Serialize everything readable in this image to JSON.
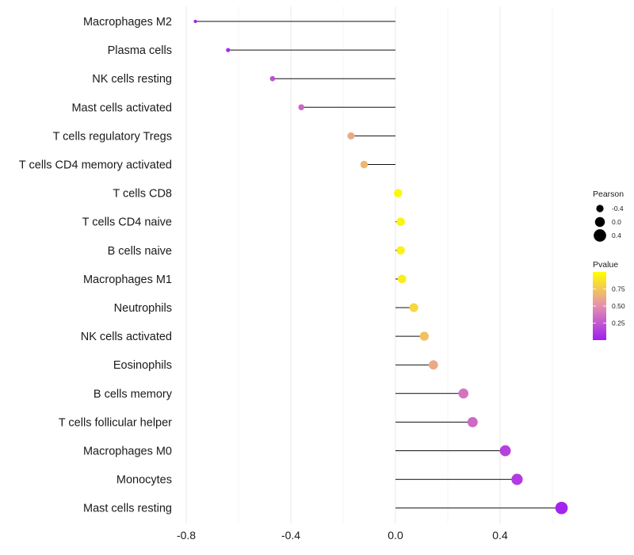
{
  "chart_data": {
    "type": "lollipop",
    "title": "",
    "xlabel": "",
    "ylabel": "",
    "xlim": [
      -0.8,
      0.63
    ],
    "x_ticks": [
      -0.8,
      -0.4,
      0.0,
      0.4
    ],
    "x_tick_labels": [
      "-0.8",
      "-0.4",
      "0.0",
      "0.4"
    ],
    "grid": true,
    "categories": [
      "Macrophages M2",
      "Plasma cells",
      "NK cells resting",
      "Mast cells activated",
      "T cells regulatory  Tregs",
      "T cells CD4 memory activated",
      "T cells CD8",
      "T cells CD4 naive",
      "B cells naive",
      "Macrophages M1",
      "Neutrophils",
      "NK cells activated",
      "Eosinophils",
      "B cells memory",
      "T cells follicular helper",
      "Macrophages M0",
      "Monocytes",
      "Mast cells resting"
    ],
    "pearson": [
      -0.765,
      -0.64,
      -0.47,
      -0.36,
      -0.17,
      -0.12,
      0.01,
      0.02,
      0.02,
      0.025,
      0.07,
      0.11,
      0.145,
      0.26,
      0.295,
      0.42,
      0.465,
      0.635
    ],
    "pvalue": [
      0.02,
      0.05,
      0.22,
      0.32,
      0.62,
      0.68,
      0.97,
      0.95,
      0.94,
      0.92,
      0.82,
      0.72,
      0.62,
      0.38,
      0.33,
      0.15,
      0.12,
      0.02
    ],
    "size_legend": {
      "title": "Pearson",
      "values": [
        -0.4,
        0.0,
        0.4
      ],
      "labels": [
        "-0.4",
        "0.0",
        "0.4"
      ]
    },
    "color_legend": {
      "title": "Pvalue",
      "range": [
        0.0,
        1.0
      ],
      "breaks": [
        0.75,
        0.5,
        0.25
      ],
      "labels": [
        "0.75",
        "0.50",
        "0.25"
      ],
      "low_color": "#a020f0",
      "mid_color": "#e58fb0",
      "high_color": "#ffff00"
    }
  }
}
